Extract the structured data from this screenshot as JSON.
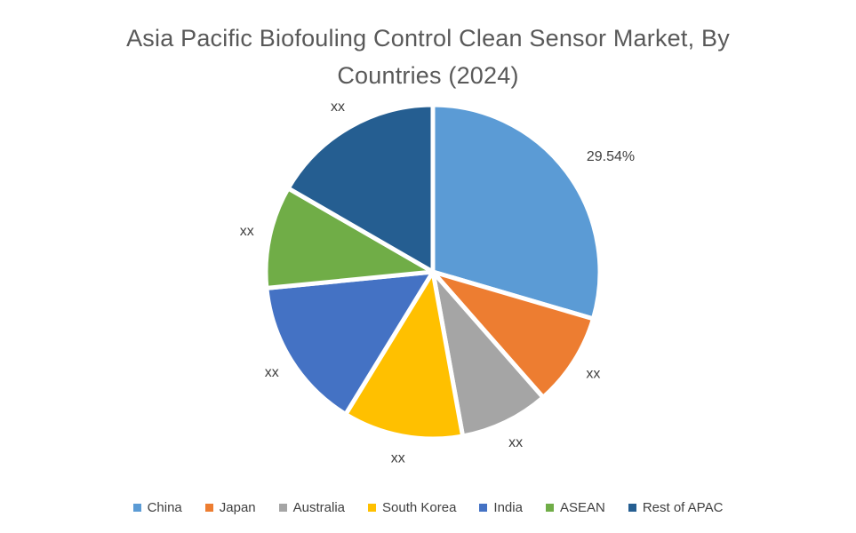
{
  "title": {
    "line1": "Asia Pacific Biofouling Control Clean Sensor Market, By",
    "line2": "Countries (2024)"
  },
  "colors": {
    "title_text": "#595959",
    "label_text": "#404040",
    "slice_border": "#ffffff"
  },
  "chart_data": {
    "type": "pie",
    "title": "Asia Pacific Biofouling Control Clean Sensor Market, By Countries (2024)",
    "start_angle_deg": 0,
    "direction": "clockwise",
    "legend_position": "bottom",
    "slices": [
      {
        "label": "China",
        "value_pct": 29.54,
        "data_label": "29.54%",
        "color": "#5B9BD5"
      },
      {
        "label": "Japan",
        "value_pct": 9.0,
        "data_label": "xx",
        "color": "#ED7D31"
      },
      {
        "label": "Australia",
        "value_pct": 8.6,
        "data_label": "xx",
        "color": "#A5A5A5"
      },
      {
        "label": "South Korea",
        "value_pct": 11.6,
        "data_label": "xx",
        "color": "#FFC000"
      },
      {
        "label": "India",
        "value_pct": 14.7,
        "data_label": "xx",
        "color": "#4472C4"
      },
      {
        "label": "ASEAN",
        "value_pct": 9.9,
        "data_label": "xx",
        "color": "#70AD47"
      },
      {
        "label": "Rest of APAC",
        "value_pct": 16.66,
        "data_label": "xx",
        "color": "#255E91"
      }
    ]
  }
}
